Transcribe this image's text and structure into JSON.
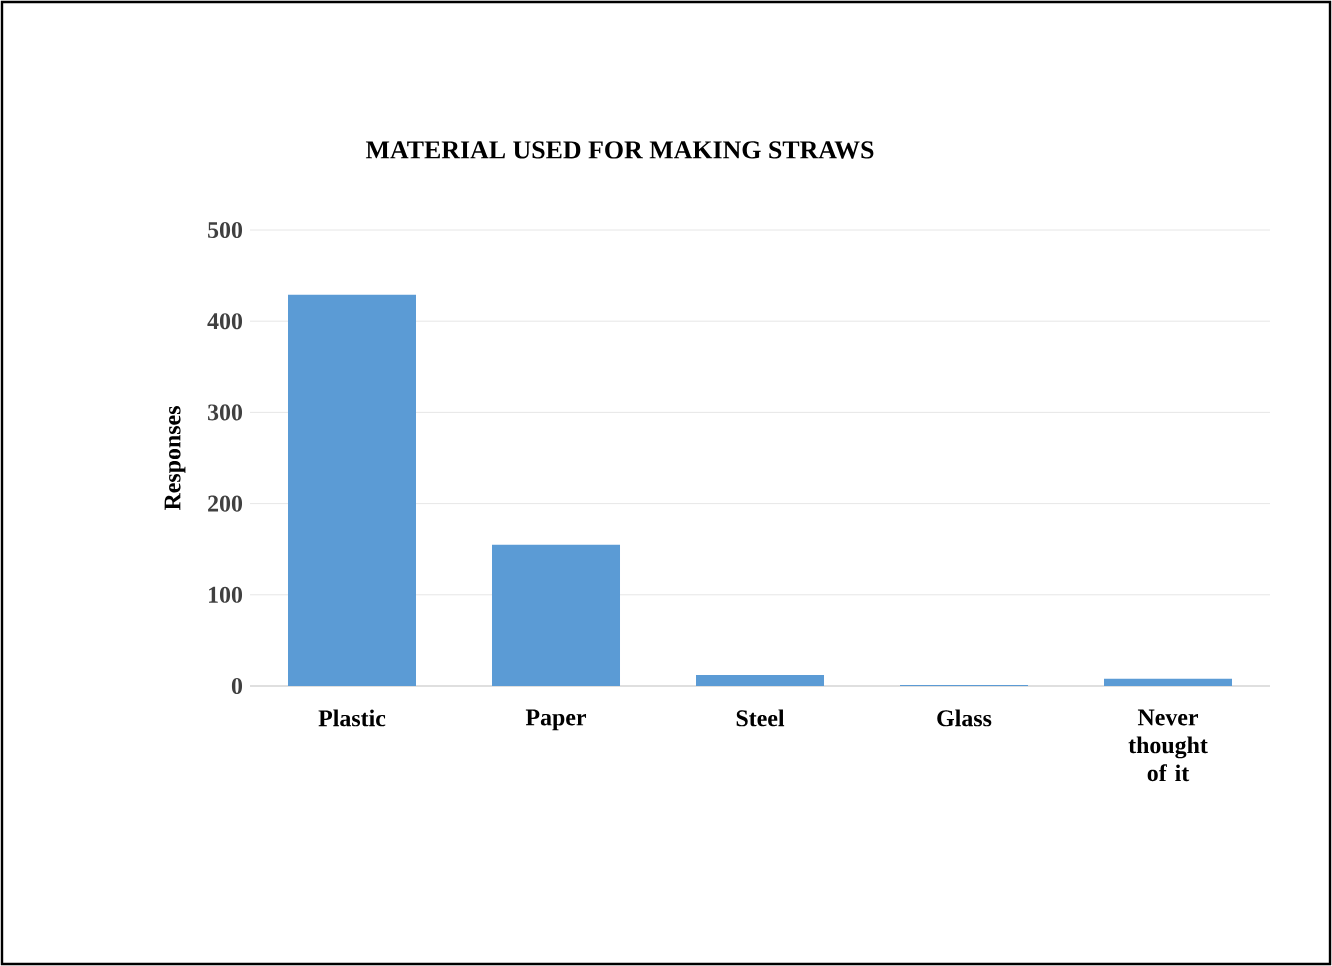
{
  "chart_data": {
    "type": "bar",
    "title": "MATERIAL USED FOR MAKING STRAWS",
    "ylabel": "Responses",
    "categories": [
      "Plastic",
      "Paper",
      "Steel",
      "Glass",
      "Never thought of it"
    ],
    "values": [
      429,
      155,
      12,
      1,
      8
    ],
    "color": "#5b9bd5",
    "ylim": [
      0,
      500
    ],
    "yticks": [
      0,
      100,
      200,
      300,
      400,
      500
    ],
    "grid": "y"
  }
}
